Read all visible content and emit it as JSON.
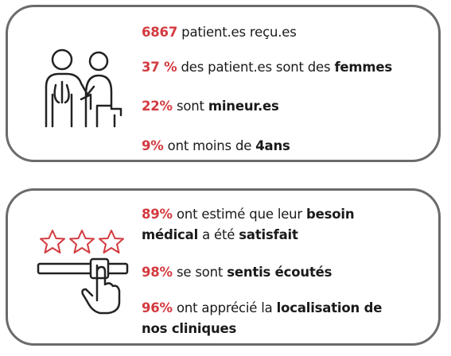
{
  "cards": [
    {
      "items": [
        [
          "6867",
          "patient.es reçu.es"
        ],
        [
          "37 %",
          "des patient.es sont des",
          "femmes"
        ],
        [
          "22%",
          "sont",
          "mineur.es"
        ],
        [
          "9%",
          "ont moins de",
          "4ans"
        ]
      ]
    },
    {
      "items": [
        [
          "89%",
          "ont estimé que leur",
          "besoin",
          "médical",
          "a été",
          "satisfait"
        ],
        [
          "98%",
          "se sont",
          "sentis écoutés"
        ],
        [
          "96%",
          "ont apprécié la",
          "localisation de",
          "nos cliniques"
        ]
      ]
    }
  ]
}
